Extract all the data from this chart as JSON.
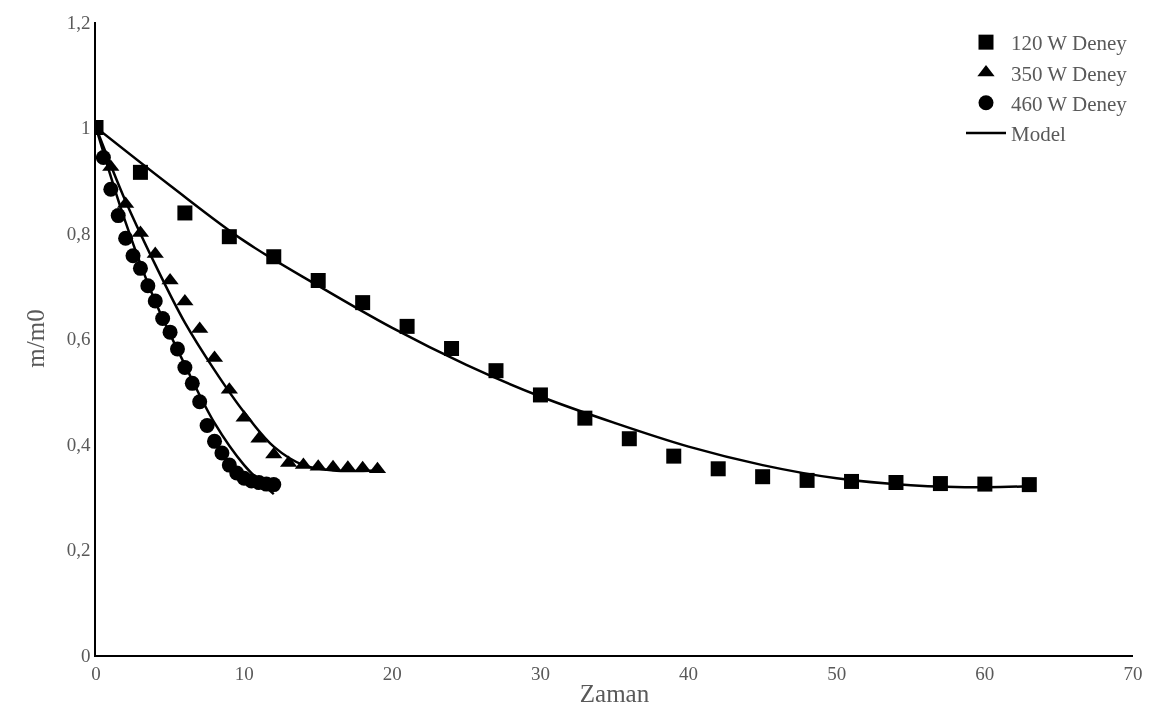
{
  "chart_data": {
    "type": "scatter",
    "xlabel": "Zaman",
    "ylabel": "m/m0",
    "xlim": [
      0,
      70
    ],
    "xticks": [
      0,
      10,
      20,
      30,
      40,
      50,
      60,
      70
    ],
    "ylim": [
      0,
      1.2
    ],
    "yticks": [
      0,
      {
        "value": 0.2,
        "label": "0,2"
      },
      {
        "value": 0.4,
        "label": "0,4"
      },
      {
        "value": 0.6,
        "label": "0,6"
      },
      {
        "value": 0.8,
        "label": "0,8"
      },
      1,
      {
        "value": 1.2,
        "label": "1,2"
      }
    ],
    "legend": "top right",
    "series": [
      {
        "name": "120 W Deney",
        "marker": "square",
        "color": "#000000",
        "x": [
          0,
          3,
          6,
          9,
          12,
          15,
          18,
          21,
          24,
          27,
          30,
          33,
          36,
          39,
          42,
          45,
          48,
          51,
          54,
          57,
          60,
          63
        ],
        "values": [
          1.0,
          0.915,
          0.838,
          0.793,
          0.755,
          0.71,
          0.668,
          0.623,
          0.581,
          0.539,
          0.493,
          0.449,
          0.41,
          0.377,
          0.353,
          0.338,
          0.331,
          0.329,
          0.327,
          0.325,
          0.324,
          0.323
        ]
      },
      {
        "name": "350 W Deney",
        "marker": "triangle",
        "color": "#000000",
        "x": [
          1,
          2,
          3,
          4,
          5,
          6,
          7,
          8,
          9,
          10,
          11,
          12,
          13,
          14,
          15,
          16,
          17,
          18,
          19
        ],
        "values": [
          0.925,
          0.855,
          0.8,
          0.76,
          0.71,
          0.67,
          0.618,
          0.563,
          0.503,
          0.45,
          0.41,
          0.38,
          0.364,
          0.36,
          0.357,
          0.356,
          0.355,
          0.354,
          0.352
        ]
      },
      {
        "name": "460 W Deney",
        "marker": "circle",
        "color": "#000000",
        "x": [
          0.5,
          1,
          1.5,
          2,
          2.5,
          3,
          3.5,
          4,
          4.5,
          5,
          5.5,
          6,
          6.5,
          7,
          7.5,
          8,
          8.5,
          9,
          9.5,
          10,
          10.5,
          11,
          11.5,
          12
        ],
        "values": [
          0.943,
          0.883,
          0.833,
          0.79,
          0.757,
          0.733,
          0.7,
          0.671,
          0.638,
          0.612,
          0.58,
          0.545,
          0.515,
          0.48,
          0.435,
          0.405,
          0.383,
          0.36,
          0.345,
          0.335,
          0.33,
          0.327,
          0.324,
          0.323
        ]
      },
      {
        "name": "Model",
        "type": "line",
        "marker": "none",
        "line_style": "solid",
        "color": "#000000",
        "x": [
          0,
          5,
          10,
          15,
          20,
          25,
          30,
          35,
          40,
          45,
          50,
          55,
          60,
          63
        ],
        "values": [
          1.0,
          0.89,
          0.785,
          0.7,
          0.62,
          0.55,
          0.49,
          0.44,
          0.395,
          0.36,
          0.335,
          0.322,
          0.318,
          0.32
        ]
      },
      {
        "type": "line",
        "marker": "none",
        "line_style": "solid",
        "color": "#000000",
        "x": [
          0,
          2,
          4,
          6,
          8,
          10,
          12,
          14,
          16,
          19
        ],
        "values": [
          1.0,
          0.86,
          0.74,
          0.63,
          0.54,
          0.46,
          0.395,
          0.36,
          0.35,
          0.35
        ]
      },
      {
        "type": "line",
        "marker": "none",
        "line_style": "solid",
        "color": "#000000",
        "x": [
          0,
          2,
          4,
          6,
          8,
          10,
          12
        ],
        "values": [
          1.0,
          0.82,
          0.67,
          0.55,
          0.44,
          0.36,
          0.305
        ]
      }
    ]
  }
}
